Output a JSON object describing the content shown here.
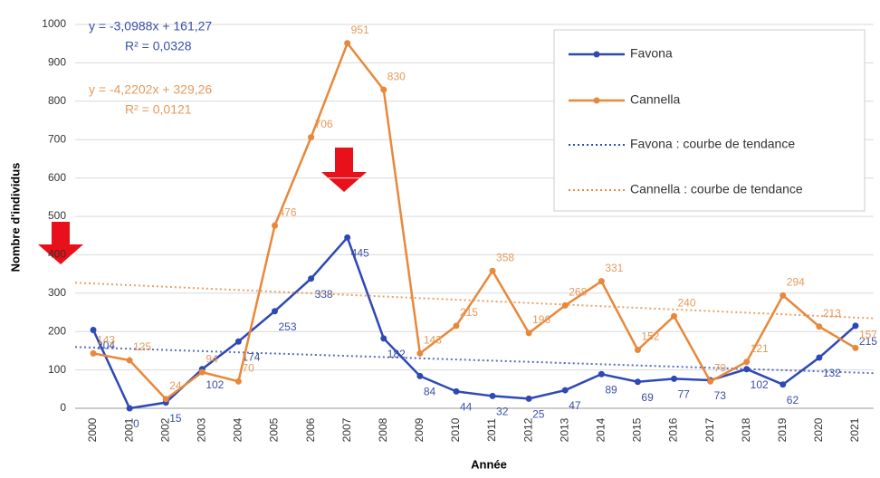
{
  "chart_data": {
    "type": "line",
    "x_label": "Année",
    "y_label": "Nombre d'individus",
    "categories": [
      "2000",
      "2001",
      "2002",
      "2003",
      "2004",
      "2005",
      "2006",
      "2007",
      "2008",
      "2009",
      "2010",
      "2011",
      "2012",
      "2013",
      "2014",
      "2015",
      "2016",
      "2017",
      "2018",
      "2019",
      "2020",
      "2021"
    ],
    "series": [
      {
        "name": "Favona",
        "color": "#2e48b5",
        "label_color": "#3a4fa8",
        "values": [
          204,
          0,
          15,
          102,
          174,
          253,
          338,
          445,
          182,
          84,
          44,
          32,
          25,
          47,
          89,
          69,
          77,
          73,
          102,
          62,
          132,
          215
        ],
        "trend": {
          "label": "Favona : courbe de tendance",
          "slope": -3.0988,
          "intercept": 161.27,
          "equation": "y = -3,0988x + 161,27",
          "r2": "R² = 0,0328"
        }
      },
      {
        "name": "Cannella",
        "color": "#e8883a",
        "label_color": "#e59a5c",
        "values": [
          143,
          125,
          24,
          94,
          70,
          476,
          706,
          951,
          830,
          143,
          215,
          358,
          196,
          268,
          331,
          152,
          240,
          70,
          121,
          294,
          213,
          157
        ],
        "trend": {
          "label": "Cannella : courbe de tendance",
          "slope": -4.2202,
          "intercept": 329.26,
          "equation": "y = -4,2202x + 329,26",
          "r2": "R² = 0,0121"
        }
      }
    ],
    "ylim": [
      0,
      1000
    ],
    "yticks": [
      0,
      100,
      200,
      300,
      400,
      500,
      600,
      700,
      800,
      900,
      1000
    ],
    "grid": true,
    "legend": "top-right"
  }
}
